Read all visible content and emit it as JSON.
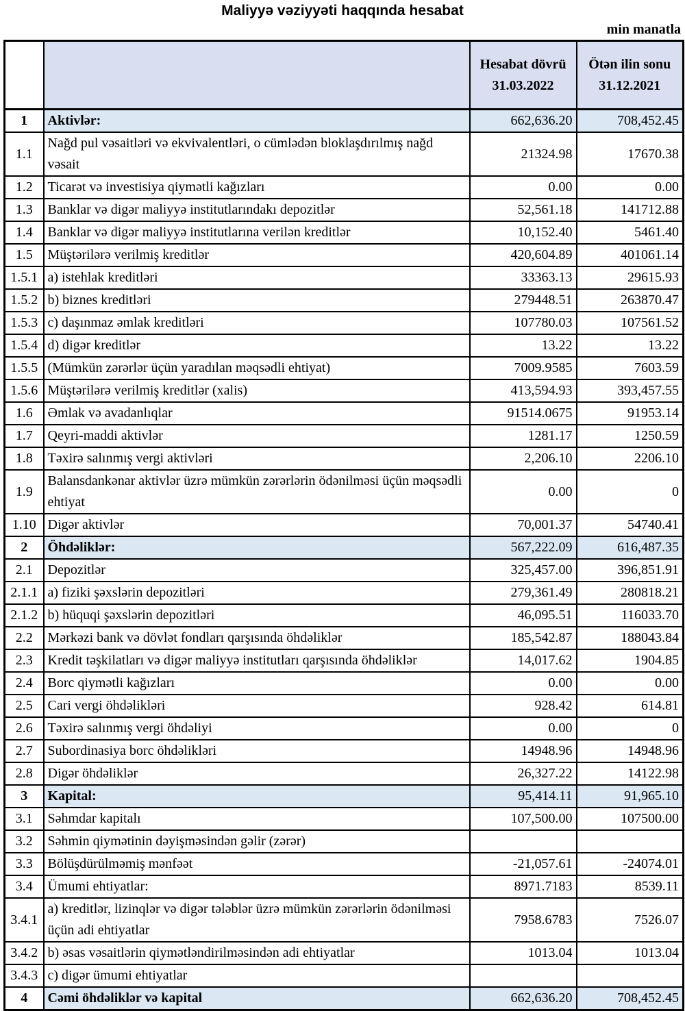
{
  "page": {
    "title": "Maliyyə vəziyyəti haqqında hesabat",
    "unit_note": "min manatla"
  },
  "table": {
    "header": {
      "current_period": {
        "label": "Hesabat dövrü",
        "date": "31.03.2022"
      },
      "previous_period": {
        "label": "Ötən ilin sonu",
        "date": "31.12.2021"
      }
    },
    "rows": [
      {
        "num": "1",
        "desc": "Aktivlər:",
        "cur": "662,636.20",
        "prev": "708,452.45",
        "type": "section"
      },
      {
        "num": "1.1",
        "desc": "Nağd pul vəsaitləri və  ekvivalentləri, o cümlədən bloklaşdırılmış nağd vəsait",
        "cur": "21324.98",
        "prev": "17670.38"
      },
      {
        "num": "1.2",
        "desc": "Ticarət və investisiya qiymətli kağızları",
        "cur": "0.00",
        "prev": "0.00"
      },
      {
        "num": "1.3",
        "desc": "Banklar və digər maliyyə institutlarındakı depozitlər",
        "cur": "52,561.18",
        "prev": "141712.88"
      },
      {
        "num": "1.4",
        "desc": "Banklar və digər maliyyə institutlarına verilən kreditlər",
        "cur": "10,152.40",
        "prev": "5461.40"
      },
      {
        "num": "1.5",
        "desc": "Müştərilərə verilmiş kreditlər",
        "cur": "420,604.89",
        "prev": "401061.14"
      },
      {
        "num": "1.5.1",
        "desc": "a) istehlak kreditləri",
        "cur": "33363.13",
        "prev": "29615.93"
      },
      {
        "num": "1.5.2",
        "desc": "b) biznes kreditləri",
        "cur": "279448.51",
        "prev": "263870.47"
      },
      {
        "num": "1.5.3",
        "desc": "c) daşınmaz əmlak kreditləri",
        "cur": "107780.03",
        "prev": "107561.52"
      },
      {
        "num": "1.5.4",
        "desc": "d) digər kreditlər",
        "cur": "13.22",
        "prev": "13.22"
      },
      {
        "num": "1.5.5",
        "desc": "(Mümkün zərərlər üçün yaradılan məqsədli ehtiyat)",
        "cur": "7009.9585",
        "prev": "7603.59"
      },
      {
        "num": "1.5.6",
        "desc": "Müştərilərə verilmiş kreditlər (xalis)",
        "cur": "413,594.93",
        "prev": "393,457.55"
      },
      {
        "num": "1.6",
        "desc": "Əmlak və avadanlıqlar",
        "cur": "91514.0675",
        "prev": "91953.14"
      },
      {
        "num": "1.7",
        "desc": "Qeyri-maddi aktivlər",
        "cur": "1281.17",
        "prev": "1250.59"
      },
      {
        "num": "1.8",
        "desc": "Təxirə salınmış vergi aktivləri",
        "cur": "2,206.10",
        "prev": "2206.10"
      },
      {
        "num": "1.9",
        "desc": "Balansdankənar aktivlər üzrə mümkün zərərlərin ödənilməsi üçün məqsədli ehtiyat",
        "cur": "0.00",
        "prev": "0"
      },
      {
        "num": "1.10",
        "desc": "Digər aktivlər",
        "cur": "70,001.37",
        "prev": "54740.41"
      },
      {
        "num": "2",
        "desc": "Öhdəliklər:",
        "cur": "567,222.09",
        "prev": "616,487.35",
        "type": "section"
      },
      {
        "num": "2.1",
        "desc": "Depozitlər",
        "cur": "325,457.00",
        "prev": "396,851.91"
      },
      {
        "num": "2.1.1",
        "desc": "a) fiziki şəxslərin depozitləri",
        "cur": "279,361.49",
        "prev": "280818.21"
      },
      {
        "num": "2.1.2",
        "desc": "b) hüquqi şəxslərin depozitləri",
        "cur": "46,095.51",
        "prev": "116033.70"
      },
      {
        "num": "2.2",
        "desc": "Mərkəzi bank və dövlət fondları qarşısında öhdəliklər",
        "cur": "185,542.87",
        "prev": "188043.84"
      },
      {
        "num": "2.3",
        "desc": "Kredit təşkilatları və digər maliyyə institutları qarşısında öhdəliklər",
        "cur": "14,017.62",
        "prev": "1904.85"
      },
      {
        "num": "2.4",
        "desc": "Borc qiymətli kağızları",
        "cur": "0.00",
        "prev": "0.00"
      },
      {
        "num": "2.5",
        "desc": "Cari vergi öhdəlikləri",
        "cur": "928.42",
        "prev": "614.81"
      },
      {
        "num": "2.6",
        "desc": "Təxirə salınmış vergi öhdəliyi",
        "cur": "0.00",
        "prev": "0"
      },
      {
        "num": "2.7",
        "desc": "Subordinasiya borc öhdəlikləri",
        "cur": "14948.96",
        "prev": "14948.96"
      },
      {
        "num": "2.8",
        "desc": "Digər öhdəliklər",
        "cur": "26,327.22",
        "prev": "14122.98"
      },
      {
        "num": "3",
        "desc": "Kapital:",
        "cur": "95,414.11",
        "prev": "91,965.10",
        "type": "section"
      },
      {
        "num": "3.1",
        "desc": "Səhmdar kapitalı",
        "cur": "107,500.00",
        "prev": "107500.00"
      },
      {
        "num": "3.2",
        "desc": "Səhmin qiymətinin dəyişməsindən gəlir (zərər)",
        "cur": "",
        "prev": ""
      },
      {
        "num": "3.3",
        "desc": "Bölüşdürülməmiş mənfəət",
        "cur": "-21,057.61",
        "prev": "-24074.01"
      },
      {
        "num": "3.4",
        "desc": "Ümumi ehtiyatlar:",
        "cur": "8971.7183",
        "prev": "8539.11"
      },
      {
        "num": "3.4.1",
        "desc": "a) kreditlər, lizinqlər və digər tələblər üzrə mümkün zərərlərin ödənilməsi üçün adi ehtiyatlar",
        "cur": "7958.6783",
        "prev": "7526.07"
      },
      {
        "num": "3.4.2",
        "desc": "b) əsas vəsaitlərin qiymətləndirilməsindən adi ehtiyatlar",
        "cur": "1013.04",
        "prev": "1013.04"
      },
      {
        "num": "3.4.3",
        "desc": "c) digər ümumi ehtiyatlar",
        "cur": "",
        "prev": ""
      },
      {
        "num": "4",
        "desc": "Cəmi öhdəliklər və kapital",
        "cur": "662,636.20",
        "prev": "708,452.45",
        "type": "section"
      }
    ]
  },
  "colors": {
    "header_bg": "#d9dff0",
    "section_row_bg": "#dbe8f4",
    "border": "#000000",
    "text": "#000000"
  }
}
